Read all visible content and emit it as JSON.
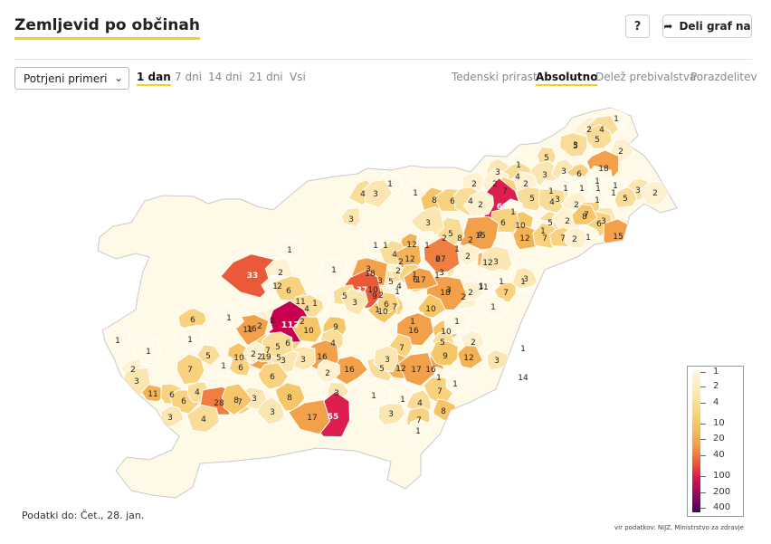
{
  "header": {
    "title": "Zemljevid po občinah",
    "help_label": "?",
    "share_label": "Deli graf na"
  },
  "controls": {
    "select_value": "Potrjeni primeri",
    "periods": [
      "1 dan",
      "7 dni",
      "14 dni",
      "21 dni",
      "Vsi"
    ],
    "active_period": "1 dan",
    "modes": [
      "Tedenski prirast",
      "Absolutno",
      "Delež prebivalstva",
      "Porazdelitev"
    ],
    "active_mode": "Absolutno"
  },
  "legend": {
    "labels": [
      "1",
      "2",
      "4",
      "10",
      "20",
      "40",
      "100",
      "200",
      "400"
    ]
  },
  "footer": {
    "data_date": "Podatki do: Čet., 28. jan.",
    "source": "vir podatkov: NIJZ, Ministrstvo za zdravje"
  },
  "chart_data": {
    "type": "choropleth",
    "title": "Zemljevid po občinah",
    "metric": "Potrjeni primeri",
    "period": "1 dan",
    "scale": "log",
    "legend_values": [
      1,
      2,
      4,
      10,
      20,
      40,
      100,
      200,
      400
    ],
    "colors": {
      "low": "#fff8df",
      "mid": "#f6cd69",
      "high": "#ec5b36",
      "max": "#c9004e"
    },
    "municipality_values": [
      1,
      2,
      4,
      3,
      5,
      5,
      2,
      5,
      1,
      3,
      4,
      3,
      18,
      3,
      6,
      1,
      2,
      2,
      2,
      1,
      1,
      1,
      1,
      1,
      3,
      2,
      1,
      7,
      62,
      3,
      5,
      4,
      2,
      1,
      5,
      1,
      4,
      3,
      8,
      1,
      6,
      4,
      2,
      1,
      5,
      2,
      7,
      3,
      6,
      8,
      1,
      10,
      6,
      4,
      8,
      2,
      1,
      2,
      12,
      7,
      7,
      1,
      2,
      15,
      15,
      5,
      12,
      2,
      1,
      1,
      2,
      3,
      3,
      1,
      1,
      4,
      6,
      12,
      5,
      3,
      10,
      4,
      3,
      2,
      1,
      3,
      18,
      33,
      2,
      1,
      2,
      1,
      1,
      27,
      12,
      3,
      6,
      1,
      1,
      3,
      2,
      11,
      7,
      3,
      1,
      2,
      18,
      1,
      2,
      9,
      7,
      1,
      10,
      1,
      10,
      2,
      11,
      1,
      37,
      17,
      6,
      5,
      3,
      10,
      1,
      1,
      16,
      9,
      4,
      2,
      6,
      12,
      117,
      2,
      11,
      16,
      6,
      1,
      1,
      1,
      2,
      19,
      5,
      7,
      10,
      4,
      6,
      5,
      16,
      7,
      12,
      3,
      1,
      14,
      9,
      16,
      5,
      12,
      1,
      17,
      3,
      16,
      3,
      3,
      5,
      10,
      2,
      6,
      1,
      6,
      5,
      7,
      1,
      2,
      3,
      11,
      6,
      6,
      4,
      28,
      7,
      3,
      8,
      2,
      3,
      1,
      1,
      7,
      1,
      4,
      3,
      7,
      8,
      1,
      55,
      17,
      3,
      8,
      4,
      3
    ]
  }
}
